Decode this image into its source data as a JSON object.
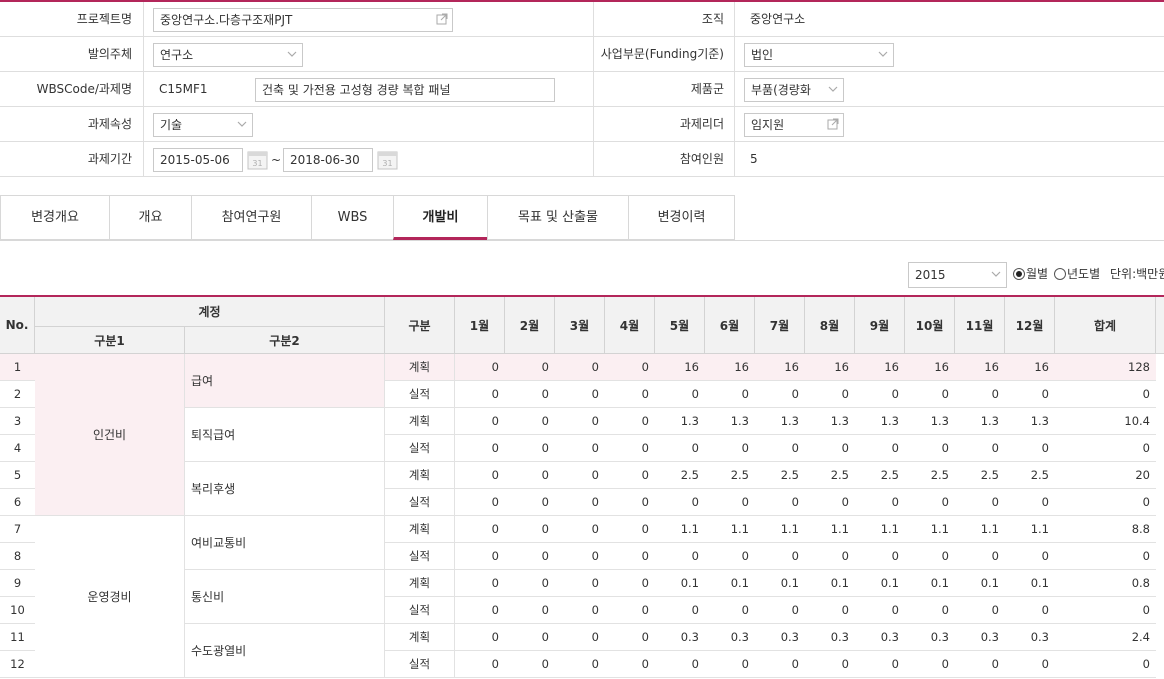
{
  "form": {
    "project_name_label": "프로젝트명",
    "project_name_value": "중앙연구소.다층구조재PJT",
    "org_label": "조직",
    "org_value": "중앙연구소",
    "issuer_label": "발의주체",
    "issuer_value": "연구소",
    "business_label": "사업부문(Funding기준)",
    "business_value": "법인",
    "wbs_label": "WBSCode/과제명",
    "wbs_code": "C15MF1",
    "task_name": "건축 및 가전용 고성형 경량 복합 패널",
    "product_group_label": "제품군",
    "product_group_value": "부품(경량화",
    "attribute_label": "과제속성",
    "attribute_value": "기술",
    "leader_label": "과제리더",
    "leader_value": "임지원",
    "period_label": "과제기간",
    "period_start": "2015-05-06",
    "period_sep": "~",
    "period_end": "2018-06-30",
    "participants_label": "참여인원",
    "participants_value": "5",
    "calendar_day": "31"
  },
  "tabs": [
    "변경개요",
    "개요",
    "참여연구원",
    "WBS",
    "개발비",
    "목표 및 산출물",
    "변경이력"
  ],
  "active_tab": "개발비",
  "filter": {
    "year": "2015",
    "monthly_label": "월별",
    "yearly_label": "년도별",
    "unit_label": "단위:백만원"
  },
  "grid": {
    "headers": {
      "no": "No.",
      "account": "계정",
      "cat1": "구분1",
      "cat2": "구분2",
      "type": "구분",
      "months": [
        "1월",
        "2월",
        "3월",
        "4월",
        "5월",
        "6월",
        "7월",
        "8월",
        "9월",
        "10월",
        "11월",
        "12월"
      ],
      "total": "합계"
    },
    "group1": [
      {
        "label": "인건비",
        "rows": 6
      },
      {
        "label": "운영경비",
        "rows": 6
      }
    ],
    "group2": [
      {
        "label": "급여",
        "rows": 2
      },
      {
        "label": "퇴직급여",
        "rows": 2
      },
      {
        "label": "복리후생",
        "rows": 2
      },
      {
        "label": "여비교통비",
        "rows": 2
      },
      {
        "label": "통신비",
        "rows": 2
      },
      {
        "label": "수도광열비",
        "rows": 2
      }
    ],
    "rows": [
      {
        "no": "1",
        "type": "계획",
        "m": [
          "0",
          "0",
          "0",
          "0",
          "16",
          "16",
          "16",
          "16",
          "16",
          "16",
          "16",
          "16"
        ],
        "total": "128"
      },
      {
        "no": "2",
        "type": "실적",
        "m": [
          "0",
          "0",
          "0",
          "0",
          "0",
          "0",
          "0",
          "0",
          "0",
          "0",
          "0",
          "0"
        ],
        "total": "0"
      },
      {
        "no": "3",
        "type": "계획",
        "m": [
          "0",
          "0",
          "0",
          "0",
          "1.3",
          "1.3",
          "1.3",
          "1.3",
          "1.3",
          "1.3",
          "1.3",
          "1.3"
        ],
        "total": "10.4"
      },
      {
        "no": "4",
        "type": "실적",
        "m": [
          "0",
          "0",
          "0",
          "0",
          "0",
          "0",
          "0",
          "0",
          "0",
          "0",
          "0",
          "0"
        ],
        "total": "0"
      },
      {
        "no": "5",
        "type": "계획",
        "m": [
          "0",
          "0",
          "0",
          "0",
          "2.5",
          "2.5",
          "2.5",
          "2.5",
          "2.5",
          "2.5",
          "2.5",
          "2.5"
        ],
        "total": "20"
      },
      {
        "no": "6",
        "type": "실적",
        "m": [
          "0",
          "0",
          "0",
          "0",
          "0",
          "0",
          "0",
          "0",
          "0",
          "0",
          "0",
          "0"
        ],
        "total": "0"
      },
      {
        "no": "7",
        "type": "계획",
        "m": [
          "0",
          "0",
          "0",
          "0",
          "1.1",
          "1.1",
          "1.1",
          "1.1",
          "1.1",
          "1.1",
          "1.1",
          "1.1"
        ],
        "total": "8.8"
      },
      {
        "no": "8",
        "type": "실적",
        "m": [
          "0",
          "0",
          "0",
          "0",
          "0",
          "0",
          "0",
          "0",
          "0",
          "0",
          "0",
          "0"
        ],
        "total": "0"
      },
      {
        "no": "9",
        "type": "계획",
        "m": [
          "0",
          "0",
          "0",
          "0",
          "0.1",
          "0.1",
          "0.1",
          "0.1",
          "0.1",
          "0.1",
          "0.1",
          "0.1"
        ],
        "total": "0.8"
      },
      {
        "no": "10",
        "type": "실적",
        "m": [
          "0",
          "0",
          "0",
          "0",
          "0",
          "0",
          "0",
          "0",
          "0",
          "0",
          "0",
          "0"
        ],
        "total": "0"
      },
      {
        "no": "11",
        "type": "계획",
        "m": [
          "0",
          "0",
          "0",
          "0",
          "0.3",
          "0.3",
          "0.3",
          "0.3",
          "0.3",
          "0.3",
          "0.3",
          "0.3"
        ],
        "total": "2.4"
      },
      {
        "no": "12",
        "type": "실적",
        "m": [
          "0",
          "0",
          "0",
          "0",
          "0",
          "0",
          "0",
          "0",
          "0",
          "0",
          "0",
          "0"
        ],
        "total": "0"
      }
    ]
  },
  "colors": {
    "accent": "#b3265a",
    "highlight_row": "#fbeff2",
    "header_bg": "#f2f2f2"
  }
}
